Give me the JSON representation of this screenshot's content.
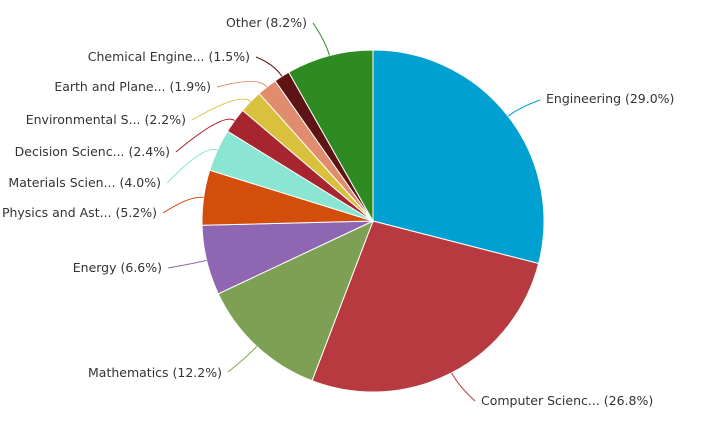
{
  "chart_data": {
    "type": "pie",
    "start_angle_deg": 0,
    "direction": "clockwise",
    "legend": "none",
    "slices": [
      {
        "label": "Engineering",
        "value": 29.0,
        "text": "Engineering (29.0%)",
        "color": "#00A0D0"
      },
      {
        "label": "Computer Scienc...",
        "value": 26.8,
        "text": "Computer Scienc... (26.8%)",
        "color": "#B83A41"
      },
      {
        "label": "Mathematics",
        "value": 12.2,
        "text": "Mathematics (12.2%)",
        "color": "#7EA054"
      },
      {
        "label": "Energy",
        "value": 6.6,
        "text": "Energy (6.6%)",
        "color": "#8F66B2"
      },
      {
        "label": "Physics and Ast...",
        "value": 5.2,
        "text": "Physics and Ast... (5.2%)",
        "color": "#D34E0A"
      },
      {
        "label": "Materials Scien...",
        "value": 4.0,
        "text": "Materials Scien... (4.0%)",
        "color": "#8AE6D3"
      },
      {
        "label": "Decision Scienc...",
        "value": 2.4,
        "text": "Decision Scienc... (2.4%)",
        "color": "#A7252E"
      },
      {
        "label": "Environmental S...",
        "value": 2.2,
        "text": "Environmental S... (2.2%)",
        "color": "#D9C13E"
      },
      {
        "label": "Earth and Plane...",
        "value": 1.9,
        "text": "Earth and Plane... (1.9%)",
        "color": "#E08C6F"
      },
      {
        "label": "Chemical Engine...",
        "value": 1.5,
        "text": "Chemical Engine... (1.5%)",
        "color": "#5E1414"
      },
      {
        "label": "Other",
        "value": 8.2,
        "text": "Other (8.2%)",
        "color": "#2E8B22"
      }
    ]
  }
}
